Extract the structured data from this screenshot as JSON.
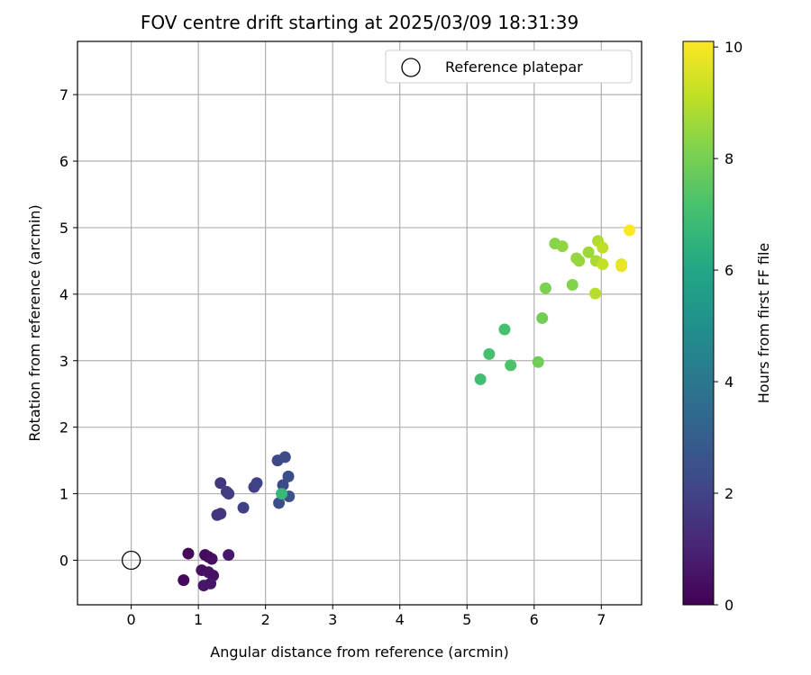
{
  "chart_data": {
    "type": "scatter",
    "title": "FOV centre drift starting at 2025/03/09 18:31:39",
    "xlabel": "Angular distance from reference (arcmin)",
    "ylabel": "Rotation from reference (arcmin)",
    "xlim": [
      -0.8,
      7.6
    ],
    "ylim": [
      -0.67,
      7.8
    ],
    "xticks": [
      "0",
      "1",
      "2",
      "3",
      "4",
      "5",
      "6",
      "7"
    ],
    "yticks": [
      "0",
      "1",
      "2",
      "3",
      "4",
      "5",
      "6",
      "7"
    ],
    "grid": true,
    "legend": {
      "position": "top-right",
      "entries": [
        "Reference platepar"
      ]
    },
    "reference_point": {
      "x": 0,
      "y": 0
    },
    "colorbar": {
      "label": "Hours from first FF file",
      "range": [
        0,
        10.1
      ],
      "ticks": [
        "0",
        "2",
        "4",
        "6",
        "8",
        "10"
      ],
      "colormap": "viridis"
    },
    "points": [
      {
        "x": 0.85,
        "y": 0.1,
        "h": 0.2
      },
      {
        "x": 0.78,
        "y": -0.3,
        "h": 0.2
      },
      {
        "x": 1.1,
        "y": 0.08,
        "h": 0.3
      },
      {
        "x": 1.15,
        "y": 0.05,
        "h": 0.3
      },
      {
        "x": 1.2,
        "y": 0.02,
        "h": 0.4
      },
      {
        "x": 1.05,
        "y": -0.15,
        "h": 0.4
      },
      {
        "x": 1.15,
        "y": -0.18,
        "h": 0.5
      },
      {
        "x": 1.22,
        "y": -0.23,
        "h": 0.5
      },
      {
        "x": 1.08,
        "y": -0.38,
        "h": 0.6
      },
      {
        "x": 1.18,
        "y": -0.35,
        "h": 0.6
      },
      {
        "x": 1.45,
        "y": 0.08,
        "h": 0.7
      },
      {
        "x": 1.28,
        "y": 0.68,
        "h": 1.5
      },
      {
        "x": 1.33,
        "y": 0.7,
        "h": 1.5
      },
      {
        "x": 1.33,
        "y": 1.16,
        "h": 1.6
      },
      {
        "x": 1.42,
        "y": 1.03,
        "h": 1.8
      },
      {
        "x": 1.45,
        "y": 1.0,
        "h": 1.8
      },
      {
        "x": 1.67,
        "y": 0.79,
        "h": 1.9
      },
      {
        "x": 1.83,
        "y": 1.1,
        "h": 1.9
      },
      {
        "x": 1.87,
        "y": 1.16,
        "h": 2.0
      },
      {
        "x": 2.18,
        "y": 1.5,
        "h": 2.2
      },
      {
        "x": 2.29,
        "y": 1.55,
        "h": 2.3
      },
      {
        "x": 2.26,
        "y": 1.13,
        "h": 2.3
      },
      {
        "x": 2.34,
        "y": 1.26,
        "h": 2.4
      },
      {
        "x": 2.2,
        "y": 0.86,
        "h": 2.4
      },
      {
        "x": 2.35,
        "y": 0.96,
        "h": 2.5
      },
      {
        "x": 2.24,
        "y": 1.0,
        "h": 6.7
      },
      {
        "x": 5.2,
        "y": 2.72,
        "h": 7.0
      },
      {
        "x": 5.33,
        "y": 3.1,
        "h": 7.1
      },
      {
        "x": 5.56,
        "y": 3.47,
        "h": 7.1
      },
      {
        "x": 5.65,
        "y": 2.93,
        "h": 7.2
      },
      {
        "x": 6.06,
        "y": 2.98,
        "h": 7.9
      },
      {
        "x": 6.12,
        "y": 3.64,
        "h": 7.9
      },
      {
        "x": 6.17,
        "y": 4.09,
        "h": 8.1
      },
      {
        "x": 6.57,
        "y": 4.14,
        "h": 8.2
      },
      {
        "x": 6.31,
        "y": 4.76,
        "h": 8.3
      },
      {
        "x": 6.42,
        "y": 4.72,
        "h": 8.4
      },
      {
        "x": 6.63,
        "y": 4.54,
        "h": 8.5
      },
      {
        "x": 6.67,
        "y": 4.5,
        "h": 8.5
      },
      {
        "x": 6.81,
        "y": 4.63,
        "h": 8.6
      },
      {
        "x": 6.92,
        "y": 4.5,
        "h": 8.8
      },
      {
        "x": 6.95,
        "y": 4.8,
        "h": 8.9
      },
      {
        "x": 7.02,
        "y": 4.7,
        "h": 9.1
      },
      {
        "x": 7.02,
        "y": 4.45,
        "h": 9.2
      },
      {
        "x": 6.91,
        "y": 4.01,
        "h": 9.0
      },
      {
        "x": 7.3,
        "y": 4.45,
        "h": 9.6
      },
      {
        "x": 7.3,
        "y": 4.42,
        "h": 9.8
      },
      {
        "x": 7.42,
        "y": 4.96,
        "h": 10.1
      }
    ]
  }
}
